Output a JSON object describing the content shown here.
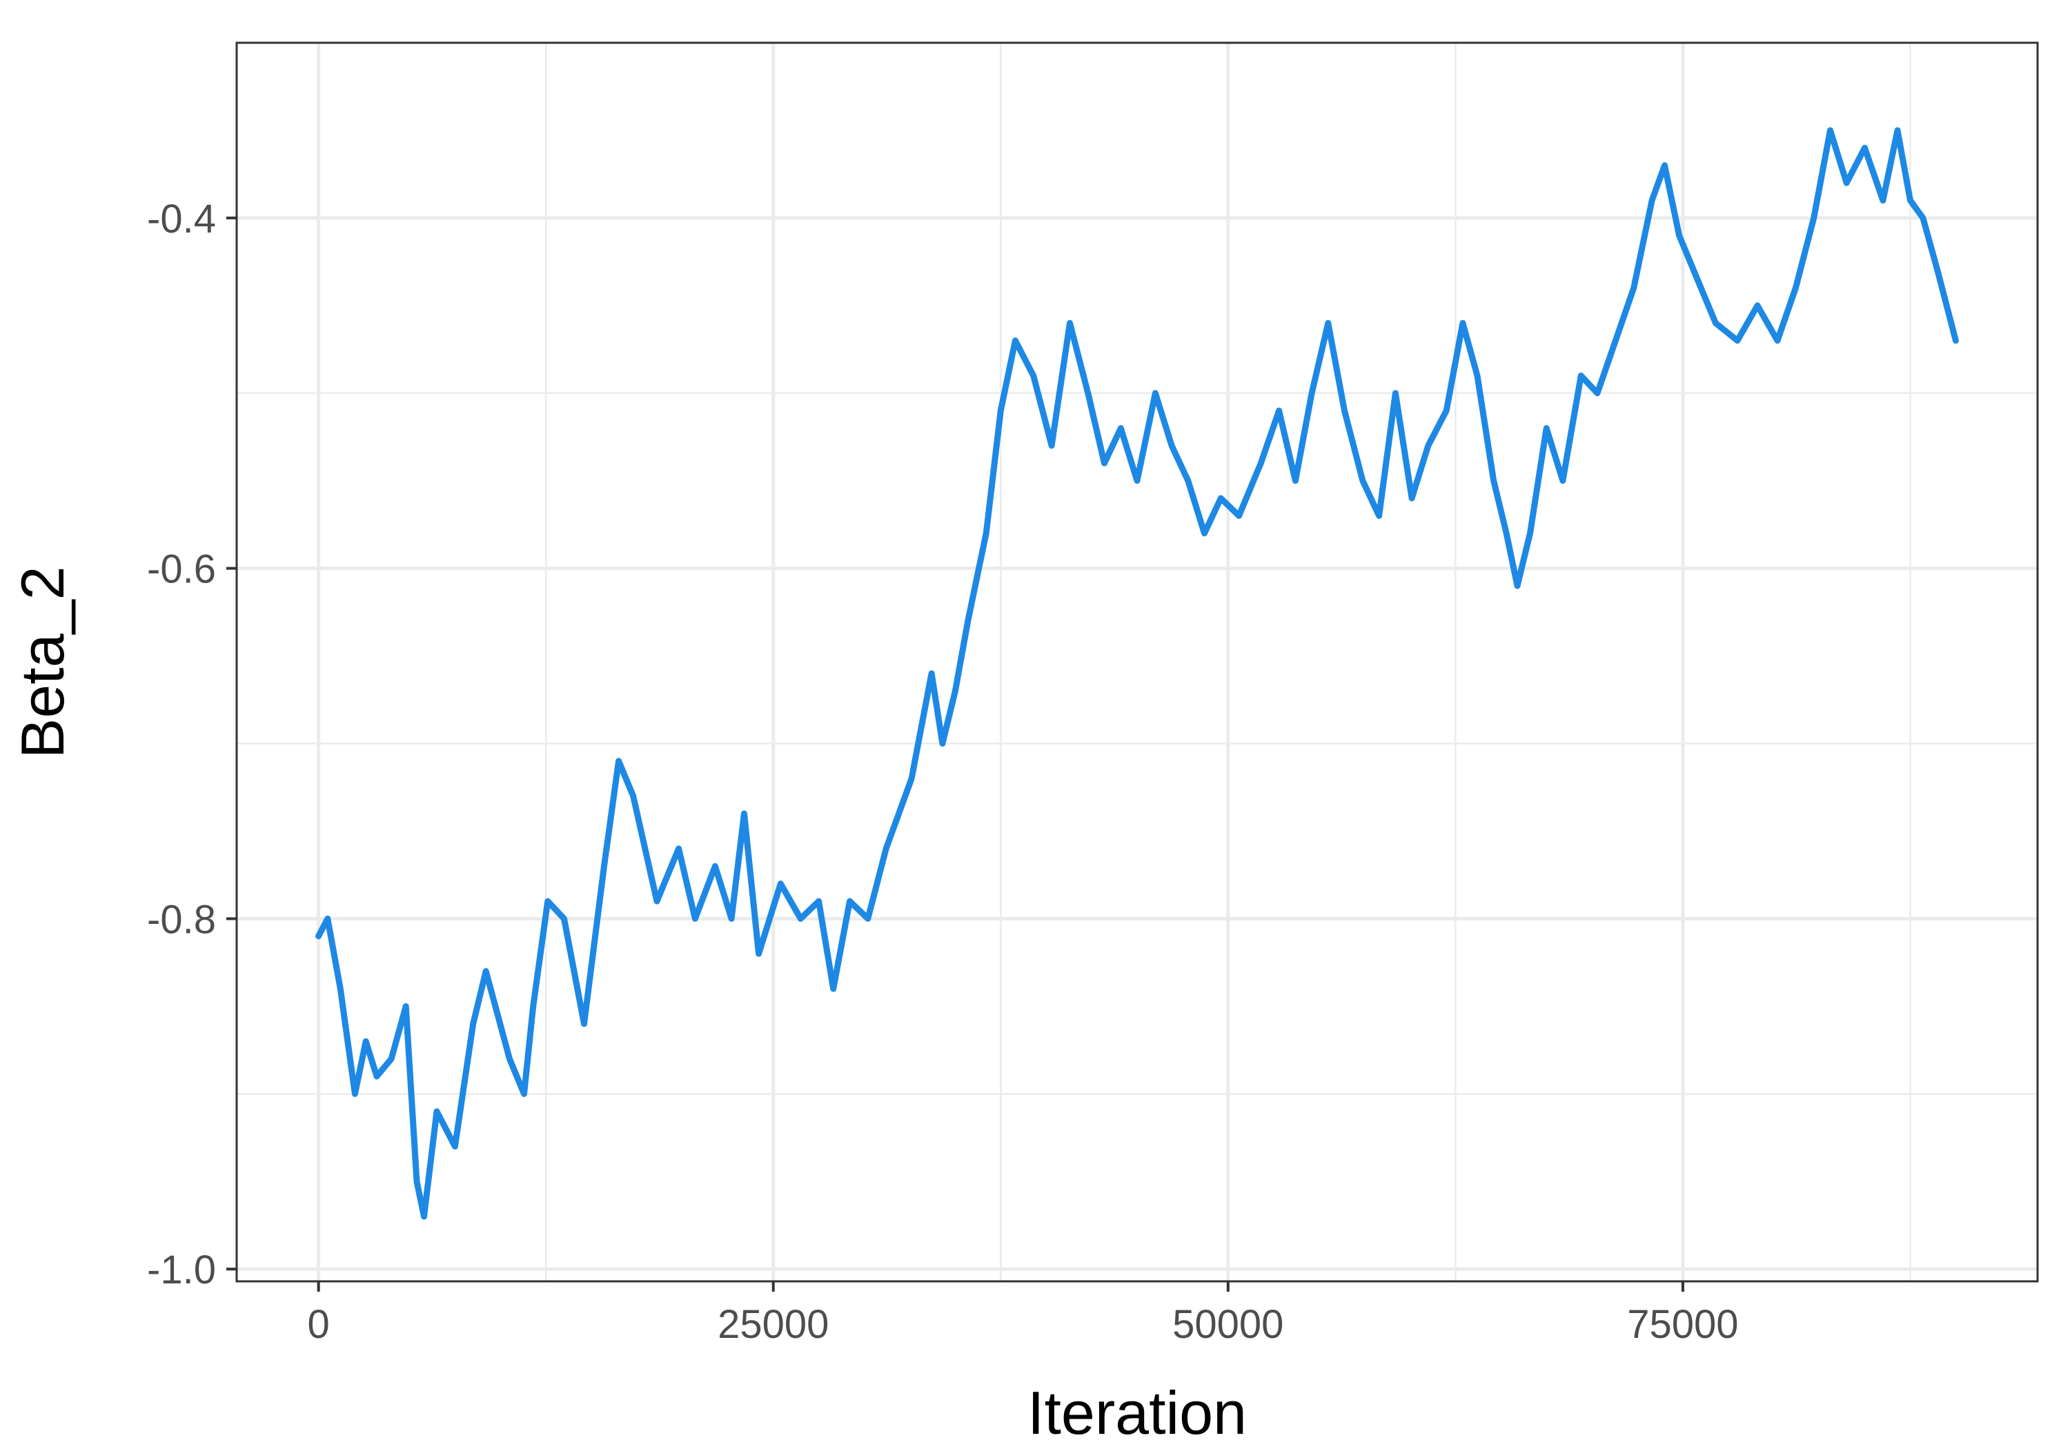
{
  "chart_data": {
    "type": "line",
    "title": "",
    "xlabel": "Iteration",
    "ylabel": "Beta_2",
    "xlim": [
      -4500,
      94500
    ],
    "ylim": [
      -1.007,
      -0.3
    ],
    "x_ticks": [
      0,
      25000,
      50000,
      75000
    ],
    "x_tick_labels": [
      "0",
      "25000",
      "50000",
      "75000"
    ],
    "y_ticks": [
      -1.0,
      -0.8,
      -0.6,
      -0.4
    ],
    "y_tick_labels": [
      "-1.0",
      "-0.8",
      "-0.6",
      "-0.4"
    ],
    "grid": true,
    "series": [
      {
        "color": "#1E88E5",
        "x": [
          0,
          500,
          1200,
          2000,
          2600,
          3200,
          4000,
          4800,
          5400,
          5800,
          6500,
          7500,
          8500,
          9200,
          10500,
          11300,
          11800,
          12600,
          13500,
          14600,
          15700,
          16500,
          17300,
          18600,
          19800,
          20700,
          21800,
          22700,
          23400,
          24200,
          25400,
          26500,
          27500,
          28300,
          29200,
          30200,
          31200,
          32600,
          33700,
          34300,
          35000,
          35700,
          36700,
          37500,
          38300,
          39300,
          40300,
          41300,
          42300,
          43200,
          44100,
          45000,
          46000,
          46900,
          47800,
          48700,
          49600,
          50600,
          51800,
          52800,
          53700,
          54600,
          55500,
          56400,
          57400,
          58300,
          59200,
          60100,
          61000,
          62000,
          62900,
          63700,
          64600,
          65300,
          65900,
          66600,
          67500,
          68400,
          69400,
          70300,
          71300,
          72300,
          73300,
          74000,
          74800,
          75600,
          76800,
          78000,
          79100,
          80200,
          81200,
          82200,
          83100,
          84000,
          85000,
          86000,
          86800,
          87500,
          88200,
          89000,
          90000
        ],
        "y": [
          -0.81,
          -0.8,
          -0.84,
          -0.9,
          -0.87,
          -0.89,
          -0.88,
          -0.85,
          -0.95,
          -0.97,
          -0.91,
          -0.93,
          -0.86,
          -0.83,
          -0.88,
          -0.9,
          -0.85,
          -0.79,
          -0.8,
          -0.86,
          -0.77,
          -0.71,
          -0.73,
          -0.79,
          -0.76,
          -0.8,
          -0.77,
          -0.8,
          -0.74,
          -0.82,
          -0.78,
          -0.8,
          -0.79,
          -0.84,
          -0.79,
          -0.8,
          -0.76,
          -0.72,
          -0.66,
          -0.7,
          -0.67,
          -0.63,
          -0.58,
          -0.51,
          -0.47,
          -0.49,
          -0.53,
          -0.46,
          -0.5,
          -0.54,
          -0.52,
          -0.55,
          -0.5,
          -0.53,
          -0.55,
          -0.58,
          -0.56,
          -0.57,
          -0.54,
          -0.51,
          -0.55,
          -0.5,
          -0.46,
          -0.51,
          -0.55,
          -0.57,
          -0.5,
          -0.56,
          -0.53,
          -0.51,
          -0.46,
          -0.49,
          -0.55,
          -0.58,
          -0.61,
          -0.58,
          -0.52,
          -0.55,
          -0.49,
          -0.5,
          -0.47,
          -0.44,
          -0.39,
          -0.37,
          -0.41,
          -0.43,
          -0.46,
          -0.47,
          -0.45,
          -0.47,
          -0.44,
          -0.4,
          -0.35,
          -0.38,
          -0.36,
          -0.39,
          -0.35,
          -0.39,
          -0.4,
          -0.43,
          -0.47
        ]
      }
    ]
  }
}
